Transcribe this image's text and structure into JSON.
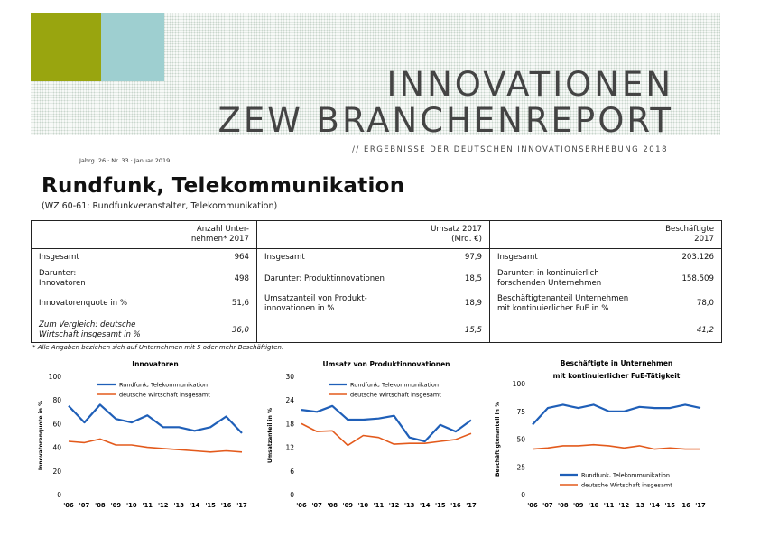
{
  "header": {
    "title_line1": "INNOVATIONEN",
    "title_line2": "ZEW BRANCHENREPORT",
    "subtitle": "// ERGEBNISSE DER DEUTSCHEN INNOVATIONSERHEBUNG 2018",
    "issue": "Jahrg. 26 · Nr. 33 · Januar 2019",
    "brand_green": "#99a50f",
    "brand_teal": "#9ecfd0"
  },
  "page": {
    "title": "Rundfunk, Telekommunikation",
    "subtitle": "(WZ 60-61: Rundfunkveranstalter, Telekommunikation)"
  },
  "table": {
    "col1": {
      "header_line1": "Anzahl Unter-",
      "header_line2": "nehmen* 2017",
      "r1_label": "Insgesamt",
      "r1_value": "964",
      "r2_label_l1": "Darunter:",
      "r2_label_l2": "Innovatoren",
      "r2_value": "498",
      "r3_label": "Innovatorenquote in %",
      "r3_value": "51,6",
      "r4_label_l1": "Zum Vergleich: deutsche",
      "r4_label_l2": "Wirtschaft insgesamt in %",
      "r4_value": "36,0"
    },
    "col2": {
      "header_line1": "Umsatz 2017",
      "header_line2": "(Mrd. €)",
      "r1_label": "Insgesamt",
      "r1_value": "97,9",
      "r2_label": "Darunter: Produktinnovationen",
      "r2_value": "18,5",
      "r3_label_l1": "Umsatzanteil von Produkt-",
      "r3_label_l2": "innovationen in %",
      "r3_value": "18,9",
      "r4_value": "15,5"
    },
    "col3": {
      "header_line1": "Beschäftigte",
      "header_line2": "2017",
      "r1_label": "Insgesamt",
      "r1_value": "203.126",
      "r2_label_l1": "Darunter: in kontinuierlich",
      "r2_label_l2": "forschenden Unternehmen",
      "r2_value": "158.509",
      "r3_label_l1": "Beschäftigtenanteil Unternehmen",
      "r3_label_l2": "mit kontinuierlicher FuE in %",
      "r3_value": "78,0",
      "r4_value": "41,2"
    }
  },
  "footnote": "* Alle Angaben beziehen sich auf Unternehmen mit 5 oder mehr Beschäftigten.",
  "chart_data": [
    {
      "type": "line",
      "title": "Innovatoren",
      "title_line2": "",
      "ylabel": "Innovatorenquote in %",
      "ylim": [
        0,
        100
      ],
      "yticks": [
        0,
        20,
        40,
        60,
        80,
        100
      ],
      "categories": [
        "'06",
        "'07",
        "'08",
        "'09",
        "'10",
        "'11",
        "'12",
        "'13",
        "'14",
        "'15",
        "'16",
        "'17"
      ],
      "legend_position": "top-right",
      "series": [
        {
          "name": "Rundfunk, Telekommunikation",
          "color": "#1f5fb8",
          "values": [
            75,
            61,
            76,
            64,
            61,
            67,
            57,
            57,
            54,
            57,
            66,
            52
          ]
        },
        {
          "name": "deutsche Wirtschaft insgesamt",
          "color": "#e35a1c",
          "values": [
            45,
            44,
            47,
            42,
            42,
            40,
            39,
            38,
            37,
            36,
            37,
            36
          ]
        }
      ]
    },
    {
      "type": "line",
      "title": "Umsatz von Produktinnovationen",
      "title_line2": "",
      "ylabel": "Umsatzanteil in %",
      "ylim": [
        0,
        30
      ],
      "yticks": [
        0,
        6,
        12,
        18,
        24,
        30
      ],
      "categories": [
        "'06",
        "'07",
        "'08",
        "'09",
        "'10",
        "'11",
        "'12",
        "'13",
        "'14",
        "'15",
        "'16",
        "'17"
      ],
      "legend_position": "top-right",
      "series": [
        {
          "name": "Rundfunk, Telekommunikation",
          "color": "#1f5fb8",
          "values": [
            21.5,
            21,
            22.5,
            19,
            19,
            19.3,
            20,
            14.5,
            13.5,
            17.7,
            16,
            18.9
          ]
        },
        {
          "name": "deutsche Wirtschaft insgesamt",
          "color": "#e35a1c",
          "values": [
            18,
            16,
            16.2,
            12.5,
            15,
            14.5,
            12.8,
            13,
            13,
            13.5,
            14,
            15.5
          ]
        }
      ]
    },
    {
      "type": "line",
      "title": "Beschäftigte in Unternehmen",
      "title_line2": "mit kontinuierlicher FuE-Tätigkeit",
      "ylabel": "Beschäftigtenanteil in %",
      "ylim": [
        0,
        100
      ],
      "yticks": [
        0,
        25,
        50,
        75,
        100
      ],
      "categories": [
        "'06",
        "'07",
        "'08",
        "'09",
        "'10",
        "'11",
        "'12",
        "'13",
        "'14",
        "'15",
        "'16",
        "'17"
      ],
      "legend_position": "bottom-right",
      "series": [
        {
          "name": "Rundfunk, Telekommunikation",
          "color": "#1f5fb8",
          "values": [
            63,
            78,
            81,
            78,
            81,
            75,
            75,
            79,
            78,
            78,
            81,
            78
          ]
        },
        {
          "name": "deutsche Wirtschaft insgesamt",
          "color": "#e35a1c",
          "values": [
            41,
            42,
            44,
            44,
            45,
            44,
            42,
            44,
            41,
            42,
            41,
            41
          ]
        }
      ]
    }
  ]
}
